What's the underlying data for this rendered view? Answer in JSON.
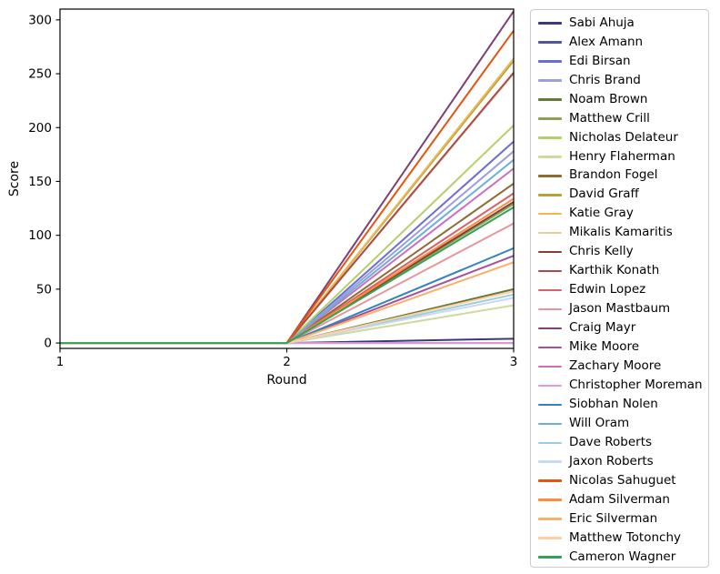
{
  "chart_data": {
    "type": "line",
    "x": [
      1,
      2,
      3
    ],
    "xlabel": "Round",
    "ylabel": "Score",
    "xticks": [
      1,
      2,
      3
    ],
    "yticks": [
      0,
      50,
      100,
      150,
      200,
      250,
      300
    ],
    "xlim": [
      1,
      3
    ],
    "ylim": [
      -5,
      310
    ],
    "grid": false,
    "legend_position": "right-outside",
    "series": [
      {
        "name": "Sabi Ahuja",
        "color": "#393b79",
        "values": [
          0,
          0,
          4
        ]
      },
      {
        "name": "Alex Amann",
        "color": "#5254a3",
        "values": [
          0,
          0,
          0
        ]
      },
      {
        "name": "Edi Birsan",
        "color": "#6b6ecf",
        "values": [
          0,
          0,
          187
        ]
      },
      {
        "name": "Chris Brand",
        "color": "#9c9ede",
        "values": [
          0,
          0,
          178
        ]
      },
      {
        "name": "Noam Brown",
        "color": "#637939",
        "values": [
          0,
          0,
          50
        ]
      },
      {
        "name": "Matthew Crill",
        "color": "#8ca252",
        "values": [
          0,
          0,
          129
        ]
      },
      {
        "name": "Nicholas Delateur",
        "color": "#b5cf6b",
        "values": [
          0,
          0,
          202
        ]
      },
      {
        "name": "Henry Flaherman",
        "color": "#cedb9c",
        "values": [
          0,
          0,
          35
        ]
      },
      {
        "name": "Brandon Fogel",
        "color": "#8c6d31",
        "values": [
          0,
          0,
          148
        ]
      },
      {
        "name": "David Graff",
        "color": "#bd9e39",
        "values": [
          0,
          0,
          262
        ]
      },
      {
        "name": "Katie Gray",
        "color": "#e7ba52",
        "values": [
          0,
          0,
          264
        ]
      },
      {
        "name": "Mikalis Kamaritis",
        "color": "#e7cb94",
        "values": [
          0,
          0,
          250
        ]
      },
      {
        "name": "Chris Kelly",
        "color": "#843c39",
        "values": [
          0,
          0,
          131
        ]
      },
      {
        "name": "Karthik Konath",
        "color": "#ad494a",
        "values": [
          0,
          0,
          251
        ]
      },
      {
        "name": "Edwin Lopez",
        "color": "#d6616b",
        "values": [
          0,
          0,
          139
        ]
      },
      {
        "name": "Jason Mastbaum",
        "color": "#e7969c",
        "values": [
          0,
          0,
          111
        ]
      },
      {
        "name": "Craig Mayr",
        "color": "#7b4173",
        "values": [
          0,
          0,
          308
        ]
      },
      {
        "name": "Mike Moore",
        "color": "#a55194",
        "values": [
          0,
          0,
          81
        ]
      },
      {
        "name": "Zachary Moore",
        "color": "#ce6dbd",
        "values": [
          0,
          0,
          162
        ]
      },
      {
        "name": "Christopher Moreman",
        "color": "#de9ed6",
        "values": [
          0,
          0,
          0
        ]
      },
      {
        "name": "Siobhan Nolen",
        "color": "#3182bd",
        "values": [
          0,
          0,
          88
        ]
      },
      {
        "name": "Will Oram",
        "color": "#6baed6",
        "values": [
          0,
          0,
          170
        ]
      },
      {
        "name": "Dave Roberts",
        "color": "#9ecae1",
        "values": [
          0,
          0,
          45
        ]
      },
      {
        "name": "Jaxon Roberts",
        "color": "#c6dbef",
        "values": [
          0,
          0,
          42
        ]
      },
      {
        "name": "Nicolas Sahuguet",
        "color": "#e6550d",
        "values": [
          0,
          0,
          290
        ]
      },
      {
        "name": "Adam Silverman",
        "color": "#fd8d3c",
        "values": [
          0,
          0,
          134
        ]
      },
      {
        "name": "Eric Silverman",
        "color": "#fdae6b",
        "values": [
          0,
          0,
          75
        ]
      },
      {
        "name": "Matthew Totonchy",
        "color": "#fdd0a2",
        "values": [
          0,
          0,
          48
        ]
      },
      {
        "name": "Cameron Wagner",
        "color": "#31a354",
        "values": [
          0,
          0,
          126
        ]
      }
    ],
    "style": {
      "line_width": 2,
      "spine_color": "#000000",
      "tick_label_color": "#000000",
      "background": "#ffffff"
    }
  }
}
